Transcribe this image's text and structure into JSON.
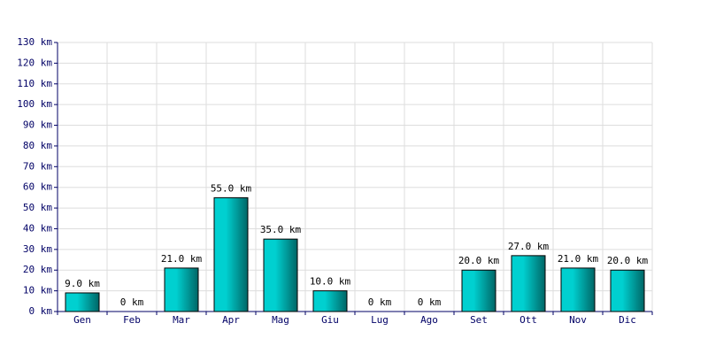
{
  "chart_data": {
    "type": "bar",
    "categories": [
      "Gen",
      "Feb",
      "Mar",
      "Apr",
      "Mag",
      "Giu",
      "Lug",
      "Ago",
      "Set",
      "Ott",
      "Nov",
      "Dic"
    ],
    "values": [
      9,
      0,
      21,
      55,
      35,
      10,
      0,
      0,
      20,
      27,
      21,
      20
    ],
    "value_labels": [
      "9.0 km",
      "0 km",
      "21.0 km",
      "55.0 km",
      "35.0 km",
      "10.0 km",
      "0 km",
      "0 km",
      "20.0 km",
      "27.0 km",
      "21.0 km",
      "20.0 km"
    ],
    "color": "#00d0d0",
    "ylim": [
      0,
      130
    ],
    "yticks": [
      {
        "value": 0,
        "label": "0 km"
      },
      {
        "value": 10,
        "label": "10 km"
      },
      {
        "value": 20,
        "label": "20 km"
      },
      {
        "value": 30,
        "label": "30 km"
      },
      {
        "value": 40,
        "label": "40 km"
      },
      {
        "value": 50,
        "label": "50 km"
      },
      {
        "value": 60,
        "label": "60 km"
      },
      {
        "value": 70,
        "label": "70 km"
      },
      {
        "value": 80,
        "label": "80 km"
      },
      {
        "value": 90,
        "label": "90 km"
      },
      {
        "value": 100,
        "label": "100 km"
      },
      {
        "value": 110,
        "label": "110 km"
      },
      {
        "value": 120,
        "label": "120 km"
      },
      {
        "value": 130,
        "label": "130 km"
      }
    ],
    "grid": true
  }
}
